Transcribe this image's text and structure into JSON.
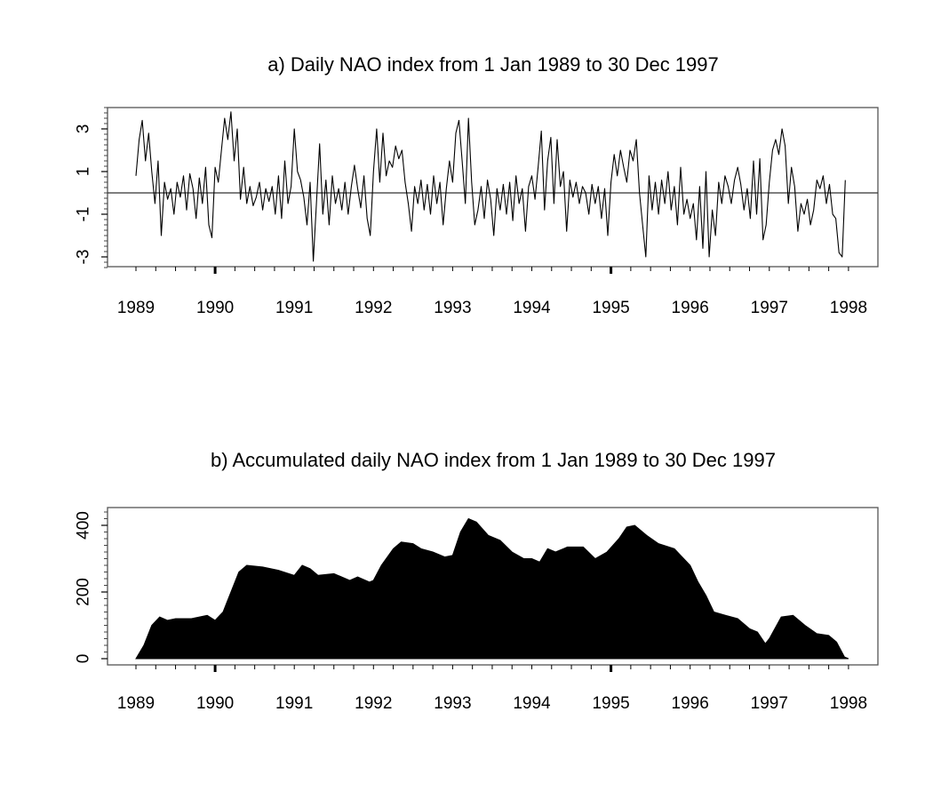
{
  "chart_data": [
    {
      "type": "line",
      "title": "a) Daily NAO index from 1 Jan 1989 to 30 Dec 1997",
      "xlabel": "",
      "ylabel": "",
      "xlim": [
        1989,
        1998
      ],
      "ylim": [
        -3.5,
        4.0
      ],
      "x_ticks": [
        "1989",
        "1990",
        "1991",
        "1992",
        "1993",
        "1994",
        "1995",
        "1996",
        "1997",
        "1998"
      ],
      "y_ticks": [
        "-3",
        "-1",
        "1",
        "3"
      ],
      "y_tick_values": [
        -3,
        -1,
        1,
        3
      ],
      "reference_line": 0,
      "grid": false,
      "sample_step_years": 0.04,
      "series": [
        {
          "name": "Daily NAO index",
          "start": 1989,
          "values": [
            0.8,
            2.5,
            3.4,
            1.5,
            2.8,
            1.0,
            -0.5,
            1.5,
            -2.0,
            0.5,
            -0.3,
            0.2,
            -1.0,
            0.5,
            -0.2,
            0.8,
            -0.8,
            0.9,
            0.2,
            -1.2,
            0.7,
            -0.5,
            1.2,
            -1.5,
            -2.1,
            1.2,
            0.5,
            2.0,
            3.5,
            2.5,
            3.8,
            1.5,
            3.0,
            -0.3,
            1.2,
            -0.5,
            0.3,
            -0.6,
            -0.2,
            0.5,
            -0.8,
            0.2,
            -0.4,
            0.3,
            -1.0,
            0.8,
            -1.2,
            1.5,
            -0.5,
            0.3,
            3.0,
            1.0,
            0.6,
            -0.2,
            -1.5,
            0.5,
            -3.2,
            -0.5,
            2.3,
            -1.0,
            0.6,
            -1.5,
            0.8,
            -0.5,
            0.2,
            -0.8,
            0.5,
            -1.0,
            0.3,
            1.3,
            0.2,
            -0.7,
            0.8,
            -1.2,
            -2.0,
            1.0,
            3.0,
            0.5,
            2.8,
            0.8,
            1.5,
            1.2,
            2.2,
            1.6,
            2.0,
            0.5,
            -0.5,
            -1.8,
            0.3,
            -0.5,
            0.6,
            -0.8,
            0.4,
            -1.0,
            0.8,
            -0.5,
            0.5,
            -1.5,
            0.2,
            1.5,
            0.5,
            2.8,
            3.4,
            1.5,
            -0.5,
            3.5,
            0.5,
            -1.5,
            -0.8,
            0.3,
            -1.2,
            0.6,
            -0.3,
            -2.0,
            0.2,
            -0.8,
            0.4,
            -1.0,
            0.5,
            -1.3,
            0.8,
            -0.5,
            0.2,
            -1.8,
            0.3,
            0.8,
            -0.3,
            1.2,
            2.9,
            -0.8,
            1.5,
            2.6,
            -0.5,
            2.5,
            0.3,
            1.0,
            -1.8,
            0.6,
            -0.2,
            0.5,
            -0.5,
            0.3,
            0.0,
            -1.0,
            0.4,
            -0.5,
            0.3,
            -1.2,
            0.2,
            -2.0,
            0.5,
            1.8,
            0.8,
            2.0,
            1.2,
            0.5,
            2.0,
            1.5,
            2.5,
            0.0,
            -1.5,
            -3.0,
            0.8,
            -0.8,
            0.5,
            -1.0,
            0.6,
            -0.5,
            1.0,
            -0.8,
            0.3,
            -1.5,
            1.2,
            -1.0,
            -0.3,
            -1.2,
            -0.5,
            -2.2,
            0.3,
            -2.6,
            1.0,
            -3.0,
            -0.8,
            -2.0,
            0.5,
            -0.5,
            0.8,
            0.3,
            -0.5,
            0.6,
            1.2,
            0.4,
            -0.8,
            0.2,
            -1.2,
            1.5,
            -1.0,
            1.6,
            -2.2,
            -1.5,
            0.5,
            2.0,
            2.5,
            1.8,
            3.0,
            2.2,
            -0.5,
            1.2,
            0.3,
            -1.8,
            -0.5,
            -1.0,
            -0.3,
            -1.5,
            -0.8,
            0.6,
            0.2,
            0.8,
            -0.5,
            0.4,
            -1.0,
            -1.2,
            -2.8,
            -3.0,
            0.6
          ]
        }
      ]
    },
    {
      "type": "area",
      "title": "b) Accumulated daily NAO index from 1 Jan 1989 to 30 Dec 1997",
      "xlabel": "",
      "ylabel": "",
      "xlim": [
        1989,
        1998
      ],
      "ylim": [
        0,
        440
      ],
      "x_ticks": [
        "1989",
        "1990",
        "1991",
        "1992",
        "1993",
        "1994",
        "1995",
        "1996",
        "1997",
        "1998"
      ],
      "y_ticks": [
        "0",
        "200",
        "400"
      ],
      "y_tick_values": [
        0,
        200,
        400
      ],
      "grid": false,
      "series": [
        {
          "name": "Accumulated NAO index",
          "x": [
            1989.0,
            1989.1,
            1989.2,
            1989.3,
            1989.4,
            1989.5,
            1989.7,
            1989.9,
            1990.0,
            1990.1,
            1990.2,
            1990.3,
            1990.4,
            1990.6,
            1990.8,
            1991.0,
            1991.1,
            1991.2,
            1991.3,
            1991.5,
            1991.7,
            1991.8,
            1991.95,
            1992.0,
            1992.1,
            1992.25,
            1992.35,
            1992.5,
            1992.6,
            1992.75,
            1992.9,
            1993.0,
            1993.1,
            1993.2,
            1993.3,
            1993.45,
            1993.6,
            1993.75,
            1993.9,
            1994.0,
            1994.1,
            1994.2,
            1994.3,
            1994.45,
            1994.65,
            1994.8,
            1994.95,
            1995.1,
            1995.2,
            1995.3,
            1995.45,
            1995.6,
            1995.8,
            1996.0,
            1996.1,
            1996.2,
            1996.3,
            1996.45,
            1996.6,
            1996.75,
            1996.85,
            1996.95,
            1997.0,
            1997.15,
            1997.3,
            1997.45,
            1997.6,
            1997.75,
            1997.85,
            1997.95,
            1998.0
          ],
          "values": [
            0,
            40,
            100,
            125,
            115,
            120,
            120,
            130,
            115,
            140,
            200,
            260,
            280,
            275,
            265,
            250,
            280,
            270,
            250,
            255,
            235,
            245,
            230,
            235,
            280,
            330,
            350,
            345,
            330,
            320,
            305,
            310,
            380,
            420,
            410,
            370,
            355,
            320,
            300,
            300,
            290,
            330,
            320,
            335,
            335,
            300,
            320,
            360,
            395,
            400,
            370,
            345,
            330,
            280,
            230,
            190,
            140,
            130,
            120,
            90,
            80,
            45,
            60,
            125,
            130,
            100,
            75,
            70,
            50,
            5,
            0
          ]
        }
      ]
    }
  ]
}
